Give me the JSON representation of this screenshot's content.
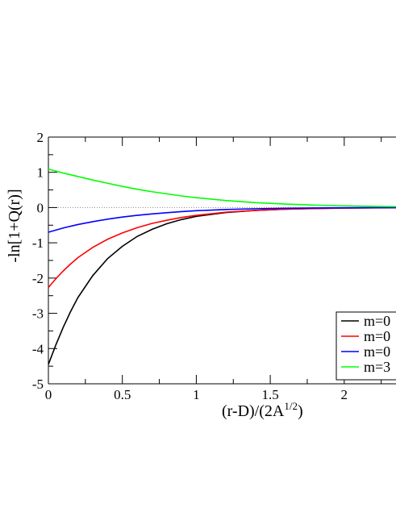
{
  "chart_data": {
    "type": "line",
    "xlabel_main": "(r-D)/(2A",
    "xlabel_sup": "1/2",
    "xlabel_close": ")",
    "ylabel": "-ln[1+Q(r)]",
    "xlim": [
      0,
      2.35
    ],
    "ylim": [
      -5,
      2
    ],
    "x_ticks": [
      {
        "value": 0,
        "label": "0"
      },
      {
        "value": 0.5,
        "label": "0.5"
      },
      {
        "value": 1,
        "label": "1"
      },
      {
        "value": 1.5,
        "label": "1.5"
      },
      {
        "value": 2,
        "label": "2"
      }
    ],
    "y_ticks": [
      {
        "value": 2,
        "label": "2"
      },
      {
        "value": 1,
        "label": "1"
      },
      {
        "value": 0,
        "label": "0"
      },
      {
        "value": -1,
        "label": "-1"
      },
      {
        "value": -2,
        "label": "-2"
      },
      {
        "value": -3,
        "label": "-3"
      },
      {
        "value": -4,
        "label": "-4"
      },
      {
        "value": -5,
        "label": "-5"
      }
    ],
    "zero_line": true,
    "grid": false,
    "legend_position": "right",
    "series": [
      {
        "name": "m=0",
        "color": "#000000",
        "x": [
          0,
          0.05,
          0.1,
          0.15,
          0.2,
          0.3,
          0.4,
          0.5,
          0.6,
          0.7,
          0.8,
          0.9,
          1.0,
          1.2,
          1.4,
          1.6,
          1.8,
          2.0,
          2.2,
          2.35
        ],
        "y": [
          -4.45,
          -3.9,
          -3.4,
          -2.95,
          -2.55,
          -1.93,
          -1.45,
          -1.1,
          -0.82,
          -0.62,
          -0.46,
          -0.34,
          -0.25,
          -0.14,
          -0.08,
          -0.045,
          -0.025,
          -0.013,
          -0.007,
          -0.004
        ]
      },
      {
        "name": "m=0",
        "color": "#ff0000",
        "x": [
          0,
          0.05,
          0.1,
          0.15,
          0.2,
          0.3,
          0.4,
          0.5,
          0.6,
          0.7,
          0.8,
          0.9,
          1.0,
          1.2,
          1.4,
          1.6,
          1.8,
          2.0,
          2.2,
          2.35
        ],
        "y": [
          -2.27,
          -2.02,
          -1.8,
          -1.6,
          -1.42,
          -1.13,
          -0.9,
          -0.72,
          -0.57,
          -0.45,
          -0.36,
          -0.28,
          -0.22,
          -0.13,
          -0.08,
          -0.047,
          -0.028,
          -0.016,
          -0.009,
          -0.006
        ]
      },
      {
        "name": "m=0",
        "color": "#0000ff",
        "x": [
          0,
          0.1,
          0.2,
          0.3,
          0.4,
          0.5,
          0.6,
          0.7,
          0.8,
          0.9,
          1.0,
          1.2,
          1.4,
          1.6,
          1.8,
          2.0,
          2.2,
          2.35
        ],
        "y": [
          -0.7,
          -0.58,
          -0.48,
          -0.4,
          -0.33,
          -0.27,
          -0.22,
          -0.18,
          -0.145,
          -0.115,
          -0.09,
          -0.055,
          -0.033,
          -0.02,
          -0.012,
          -0.007,
          -0.004,
          -0.003
        ]
      },
      {
        "name": "m=3",
        "color": "#00ff00",
        "x": [
          0,
          0.1,
          0.2,
          0.3,
          0.4,
          0.5,
          0.6,
          0.7,
          0.8,
          0.9,
          1.0,
          1.2,
          1.4,
          1.6,
          1.8,
          2.0,
          2.2,
          2.35
        ],
        "y": [
          1.09,
          0.98,
          0.88,
          0.78,
          0.69,
          0.6,
          0.52,
          0.45,
          0.39,
          0.33,
          0.28,
          0.2,
          0.14,
          0.1,
          0.07,
          0.05,
          0.035,
          0.025
        ]
      }
    ]
  }
}
